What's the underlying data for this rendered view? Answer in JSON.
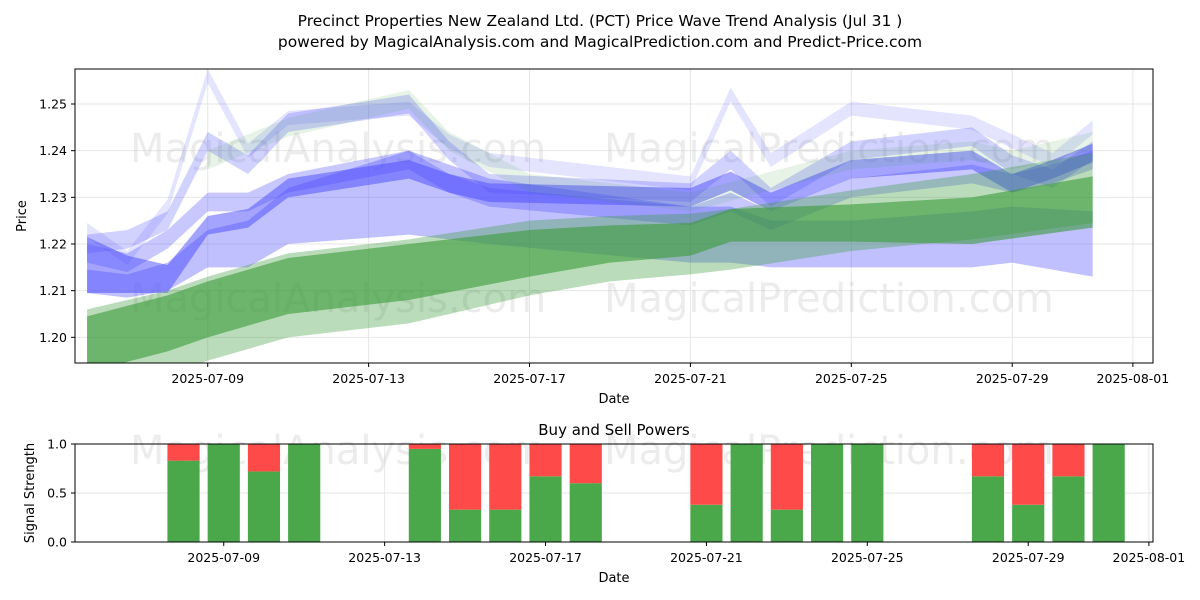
{
  "title_line1": "Precinct Properties New Zealand Ltd. (PCT) Price Wave Trend Analysis (Jul 31 )",
  "title_line2": "powered by MagicalAnalysis.com and MagicalPrediction.com and Predict-Price.com",
  "watermarks": [
    "MagicalAnalysis.com",
    "MagicalPrediction.com"
  ],
  "colors": {
    "blue": "#4a4aff",
    "green": "#3a9a3a",
    "buy": "#4aa84a",
    "sell": "#ff4a4a",
    "grid": "#e6e6e6"
  },
  "chart_data": [
    {
      "type": "area",
      "name": "price-wave-chart",
      "xlabel": "Date",
      "ylabel": "Price",
      "grid": true,
      "ylim": [
        1.1945,
        1.2575
      ],
      "xlim": [
        "2025-07-05.7",
        "2025-08-01.5"
      ],
      "x_ticks": [
        "2025-07-09",
        "2025-07-13",
        "2025-07-17",
        "2025-07-21",
        "2025-07-25",
        "2025-07-29",
        "2025-08-01"
      ],
      "y_ticks": [
        1.2,
        1.21,
        1.22,
        1.23,
        1.24,
        1.25
      ],
      "series": [
        {
          "name": "blue-wave-1",
          "color": "blue",
          "dates": [
            "2025-07-06",
            "2025-07-07",
            "2025-07-08",
            "2025-07-09",
            "2025-07-10",
            "2025-07-11",
            "2025-07-14",
            "2025-07-15",
            "2025-07-16",
            "2025-07-21",
            "2025-07-22",
            "2025-07-23",
            "2025-07-25",
            "2025-07-28",
            "2025-07-29",
            "2025-07-30",
            "2025-07-31"
          ],
          "center": [
            1.2155,
            1.2135,
            1.2125,
            1.224,
            1.2255,
            1.232,
            1.236,
            1.233,
            1.231,
            1.23,
            1.2335,
            1.229,
            1.236,
            1.238,
            1.233,
            1.236,
            1.2395
          ],
          "width": [
            0.012,
            0.008,
            0.006,
            0.004,
            0.004,
            0.004,
            0.004,
            0.004,
            0.004,
            0.004,
            0.004,
            0.004,
            0.004,
            0.004,
            0.004,
            0.004,
            0.004
          ],
          "opacity": 0.5
        },
        {
          "name": "blue-wave-2",
          "color": "blue",
          "dates": [
            "2025-07-06",
            "2025-07-07",
            "2025-07-08",
            "2025-07-09",
            "2025-07-10",
            "2025-07-11",
            "2025-07-14",
            "2025-07-15",
            "2025-07-16",
            "2025-07-21",
            "2025-07-22",
            "2025-07-23",
            "2025-07-25",
            "2025-07-28",
            "2025-07-29",
            "2025-07-30",
            "2025-07-31"
          ],
          "center": [
            1.22,
            1.221,
            1.225,
            1.242,
            1.237,
            1.246,
            1.25,
            1.24,
            1.233,
            1.231,
            1.238,
            1.23,
            1.24,
            1.243,
            1.237,
            1.234,
            1.24
          ],
          "width": [
            0.004,
            0.004,
            0.004,
            0.004,
            0.004,
            0.004,
            0.004,
            0.004,
            0.004,
            0.004,
            0.004,
            0.004,
            0.004,
            0.004,
            0.004,
            0.004,
            0.004
          ],
          "opacity": 0.25
        },
        {
          "name": "blue-wave-3",
          "color": "blue",
          "dates": [
            "2025-07-06",
            "2025-07-07",
            "2025-07-08",
            "2025-07-09",
            "2025-07-10",
            "2025-07-11",
            "2025-07-14",
            "2025-07-15",
            "2025-07-16",
            "2025-07-21",
            "2025-07-22",
            "2025-07-23",
            "2025-07-25",
            "2025-07-28",
            "2025-07-29",
            "2025-07-30",
            "2025-07-31"
          ],
          "center": [
            1.223,
            1.217,
            1.228,
            1.256,
            1.24,
            1.247,
            1.249,
            1.242,
            1.238,
            1.233,
            1.252,
            1.238,
            1.249,
            1.246,
            1.242,
            1.238,
            1.245
          ],
          "width": [
            0.003,
            0.003,
            0.003,
            0.003,
            0.003,
            0.003,
            0.003,
            0.003,
            0.003,
            0.003,
            0.003,
            0.003,
            0.003,
            0.003,
            0.003,
            0.003,
            0.003
          ],
          "opacity": 0.15
        },
        {
          "name": "blue-wave-4",
          "color": "blue",
          "dates": [
            "2025-07-06",
            "2025-07-07",
            "2025-07-08",
            "2025-07-09",
            "2025-07-10",
            "2025-07-11",
            "2025-07-14",
            "2025-07-15",
            "2025-07-16",
            "2025-07-21",
            "2025-07-22",
            "2025-07-23",
            "2025-07-25",
            "2025-07-28",
            "2025-07-29",
            "2025-07-30",
            "2025-07-31"
          ],
          "center": [
            1.218,
            1.216,
            1.221,
            1.229,
            1.229,
            1.233,
            1.238,
            1.233,
            1.23,
            1.226,
            1.229,
            1.225,
            1.232,
            1.235,
            1.233,
            1.235,
            1.238
          ],
          "width": [
            0.004,
            0.004,
            0.004,
            0.004,
            0.004,
            0.004,
            0.004,
            0.004,
            0.004,
            0.004,
            0.004,
            0.004,
            0.004,
            0.004,
            0.004,
            0.004,
            0.004
          ],
          "opacity": 0.3
        },
        {
          "name": "blue-wave-5",
          "color": "blue",
          "dates": [
            "2025-07-06",
            "2025-07-07",
            "2025-07-08",
            "2025-07-09",
            "2025-07-10",
            "2025-07-11",
            "2025-07-14",
            "2025-07-15",
            "2025-07-16",
            "2025-07-21",
            "2025-07-22",
            "2025-07-23",
            "2025-07-25",
            "2025-07-28",
            "2025-07-29",
            "2025-07-30",
            "2025-07-31"
          ],
          "center": [
            1.212,
            1.211,
            1.213,
            1.219,
            1.22,
            1.226,
            1.231,
            1.229,
            1.227,
            1.222,
            1.222,
            1.22,
            1.22,
            1.221,
            1.222,
            1.221,
            1.22
          ],
          "width": [
            0.005,
            0.005,
            0.006,
            0.008,
            0.01,
            0.012,
            0.018,
            0.016,
            0.014,
            0.012,
            0.012,
            0.01,
            0.01,
            0.012,
            0.012,
            0.013,
            0.014
          ],
          "opacity": 0.35
        },
        {
          "name": "green-wave-1",
          "color": "green",
          "dates": [
            "2025-07-06",
            "2025-07-08",
            "2025-07-09",
            "2025-07-11",
            "2025-07-14",
            "2025-07-17",
            "2025-07-19",
            "2025-07-21",
            "2025-07-22",
            "2025-07-25",
            "2025-07-28",
            "2025-07-31"
          ],
          "center": [
            1.1985,
            1.203,
            1.206,
            1.211,
            1.214,
            1.218,
            1.22,
            1.221,
            1.224,
            1.2245,
            1.225,
            1.229
          ],
          "width": [
            0.012,
            0.012,
            0.012,
            0.012,
            0.012,
            0.01,
            0.008,
            0.007,
            0.007,
            0.008,
            0.01,
            0.011
          ],
          "opacity": 0.6
        },
        {
          "name": "green-wave-2",
          "color": "green",
          "dates": [
            "2025-07-06",
            "2025-07-08",
            "2025-07-09",
            "2025-07-11",
            "2025-07-14",
            "2025-07-17",
            "2025-07-19",
            "2025-07-21",
            "2025-07-22",
            "2025-07-25",
            "2025-07-28",
            "2025-07-31"
          ],
          "center": [
            1.197,
            1.201,
            1.204,
            1.209,
            1.212,
            1.217,
            1.219,
            1.22,
            1.221,
            1.225,
            1.228,
            1.232
          ],
          "width": [
            0.018,
            0.018,
            0.018,
            0.018,
            0.018,
            0.016,
            0.014,
            0.013,
            0.013,
            0.013,
            0.014,
            0.015
          ],
          "opacity": 0.35
        },
        {
          "name": "green-wave-3",
          "color": "green",
          "dates": [
            "2025-07-09",
            "2025-07-11",
            "2025-07-14",
            "2025-07-15",
            "2025-07-17",
            "2025-07-21",
            "2025-07-25",
            "2025-07-28",
            "2025-07-29",
            "2025-07-31"
          ],
          "center": [
            1.238,
            1.245,
            1.251,
            1.242,
            1.233,
            1.229,
            1.238,
            1.24,
            1.238,
            1.242
          ],
          "width": [
            0.004,
            0.004,
            0.004,
            0.004,
            0.004,
            0.004,
            0.004,
            0.004,
            0.004,
            0.004
          ],
          "opacity": 0.12
        }
      ]
    },
    {
      "type": "bar",
      "name": "signal-strength-chart",
      "title": "Buy and Sell Powers",
      "xlabel": "Date",
      "ylabel": "Signal Strength",
      "ylim": [
        0.0,
        1.0
      ],
      "y_ticks": [
        "0.0",
        "0.5",
        "1.0"
      ],
      "x_ticks": [
        "2025-07-09",
        "2025-07-13",
        "2025-07-17",
        "2025-07-21",
        "2025-07-25",
        "2025-07-29",
        "2025-08-01"
      ],
      "grid": true,
      "categories": [
        "2025-07-08",
        "2025-07-09",
        "2025-07-10",
        "2025-07-11",
        "2025-07-14",
        "2025-07-15",
        "2025-07-16",
        "2025-07-17",
        "2025-07-18",
        "2025-07-21",
        "2025-07-22",
        "2025-07-23",
        "2025-07-24",
        "2025-07-25",
        "2025-07-28",
        "2025-07-29",
        "2025-07-30",
        "2025-07-31"
      ],
      "series": [
        {
          "name": "Buy",
          "color": "buy",
          "values": [
            0.83,
            1.0,
            0.72,
            1.0,
            0.95,
            0.33,
            0.33,
            0.67,
            0.6,
            0.38,
            1.0,
            0.33,
            1.0,
            1.0,
            0.67,
            0.38,
            0.67,
            1.0
          ]
        },
        {
          "name": "Sell",
          "color": "sell",
          "values": [
            0.17,
            0.0,
            0.28,
            0.0,
            0.05,
            0.67,
            0.67,
            0.33,
            0.4,
            0.62,
            0.0,
            0.67,
            0.0,
            0.0,
            0.33,
            0.62,
            0.33,
            0.0
          ]
        }
      ]
    }
  ]
}
